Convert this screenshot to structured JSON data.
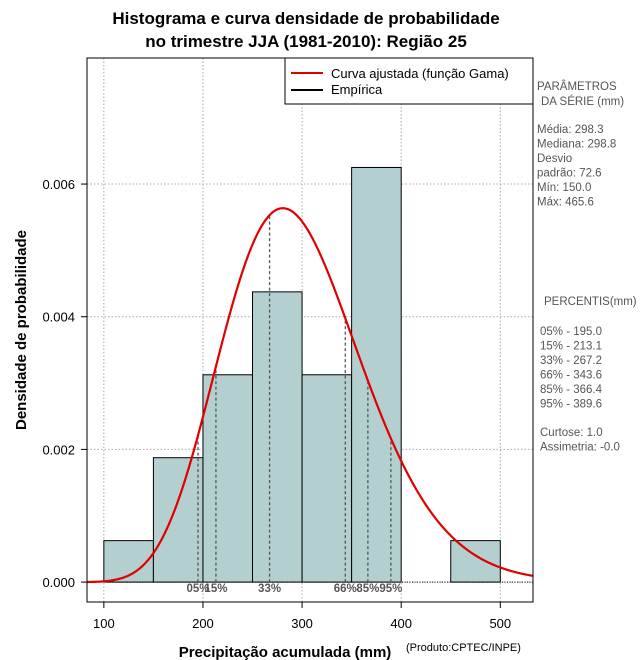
{
  "chart_data": {
    "type": "histogram",
    "title_lines": [
      "Histograma e curva densidade de probabilidade",
      "no trimestre JJA (1981-2010): Região 25"
    ],
    "xlabel": "Precipitação acumulada (mm)",
    "ylabel": "Densidade de probabilidade",
    "credit": "(Produto:CPTEC/INPE)",
    "xlim": [
      83,
      533
    ],
    "ylim": [
      -0.0003,
      0.0079
    ],
    "x_ticks": [
      100,
      200,
      300,
      400,
      500
    ],
    "y_ticks": [
      0.0,
      0.002,
      0.004,
      0.006
    ],
    "y_tick_labels": [
      "0.000",
      "0.002",
      "0.004",
      "0.006"
    ],
    "grid": true,
    "bars": [
      {
        "x0": 100,
        "x1": 150,
        "density": 0.000625
      },
      {
        "x0": 150,
        "x1": 200,
        "density": 0.001875
      },
      {
        "x0": 200,
        "x1": 250,
        "density": 0.003125
      },
      {
        "x0": 250,
        "x1": 300,
        "density": 0.004375
      },
      {
        "x0": 300,
        "x1": 350,
        "density": 0.003125
      },
      {
        "x0": 350,
        "x1": 400,
        "density": 0.00625
      },
      {
        "x0": 400,
        "x1": 450,
        "density": 0.0
      },
      {
        "x0": 450,
        "x1": 500,
        "density": 0.000625
      }
    ],
    "fitted_curve": {
      "name": "Curva ajustada (função Gama)",
      "distribution": "gamma",
      "mean": 298.3,
      "sd": 72.6,
      "color": "#e00000"
    },
    "empirical_name": "Empírica",
    "percentiles": [
      {
        "label": "05%",
        "value": 195.0
      },
      {
        "label": "15%",
        "value": 213.1
      },
      {
        "label": "33%",
        "value": 267.2
      },
      {
        "label": "66%",
        "value": 343.6
      },
      {
        "label": "85%",
        "value": 366.4
      },
      {
        "label": "95%",
        "value": 389.6
      }
    ],
    "bar_color": "#b4cfcf",
    "legend_position": "top-right"
  },
  "side_panel": {
    "params_title_1": "PARÂMETROS",
    "params_title_2": "DA SÉRIE (mm)",
    "stats": [
      "Média:  298.3",
      "Mediana:  298.8",
      "Desvio",
      "padrão:  72.6",
      "Mín:  150.0",
      "Máx:  465.6"
    ],
    "percentis_title": "PERCENTIS(mm)",
    "percentis": [
      "05% -  195.0",
      "15% -  213.1",
      "33% -  267.2",
      "66% -  343.6",
      "85% -  366.4",
      "95% -  389.6"
    ],
    "extra": [
      "Curtose:  1.0",
      "Assimetria:  -0.0"
    ]
  }
}
